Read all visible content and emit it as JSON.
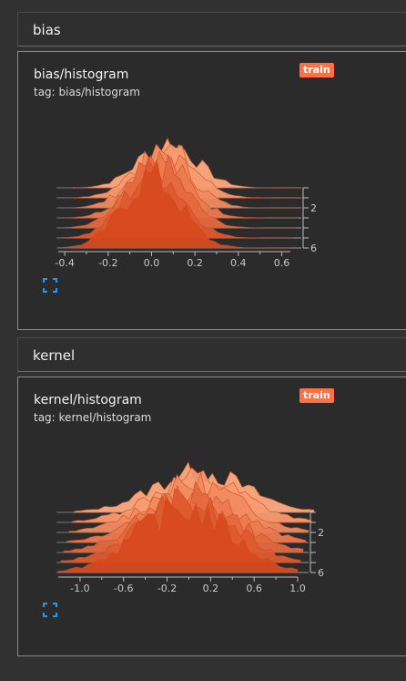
{
  "sections": [
    {
      "name": "bias",
      "card": {
        "title": "bias/histogram",
        "tag": "tag: bias/histogram",
        "badge": "train",
        "chart_data": {
          "type": "area",
          "x_ticks": [
            "-0.4",
            "-0.2",
            "0.0",
            "0.2",
            "0.4",
            "0.6"
          ],
          "x_tick_values": [
            -0.4,
            -0.2,
            0.0,
            0.2,
            0.4,
            0.6
          ],
          "xlim": [
            -0.43,
            0.64
          ],
          "y_ticks": [
            "2",
            "6"
          ],
          "y_tick_values": [
            2,
            6
          ],
          "steps": 7
        }
      }
    },
    {
      "name": "kernel",
      "card": {
        "title": "kernel/histogram",
        "tag": "tag: kernel/histogram",
        "badge": "train",
        "chart_data": {
          "type": "area",
          "x_ticks": [
            "-1.0",
            "-0.6",
            "-0.2",
            "0.2",
            "0.6",
            "1.0"
          ],
          "x_tick_values": [
            -1.0,
            -0.6,
            -0.2,
            0.2,
            0.6,
            1.0
          ],
          "xlim": [
            -1.2,
            1.0
          ],
          "y_ticks": [
            "2",
            "6"
          ],
          "y_tick_values": [
            2,
            6
          ],
          "steps": 7
        }
      }
    }
  ],
  "colors": {
    "badge": "#ff7043",
    "front": "#d84a1f",
    "back": "#ffab80",
    "icon": "#2196f3"
  }
}
